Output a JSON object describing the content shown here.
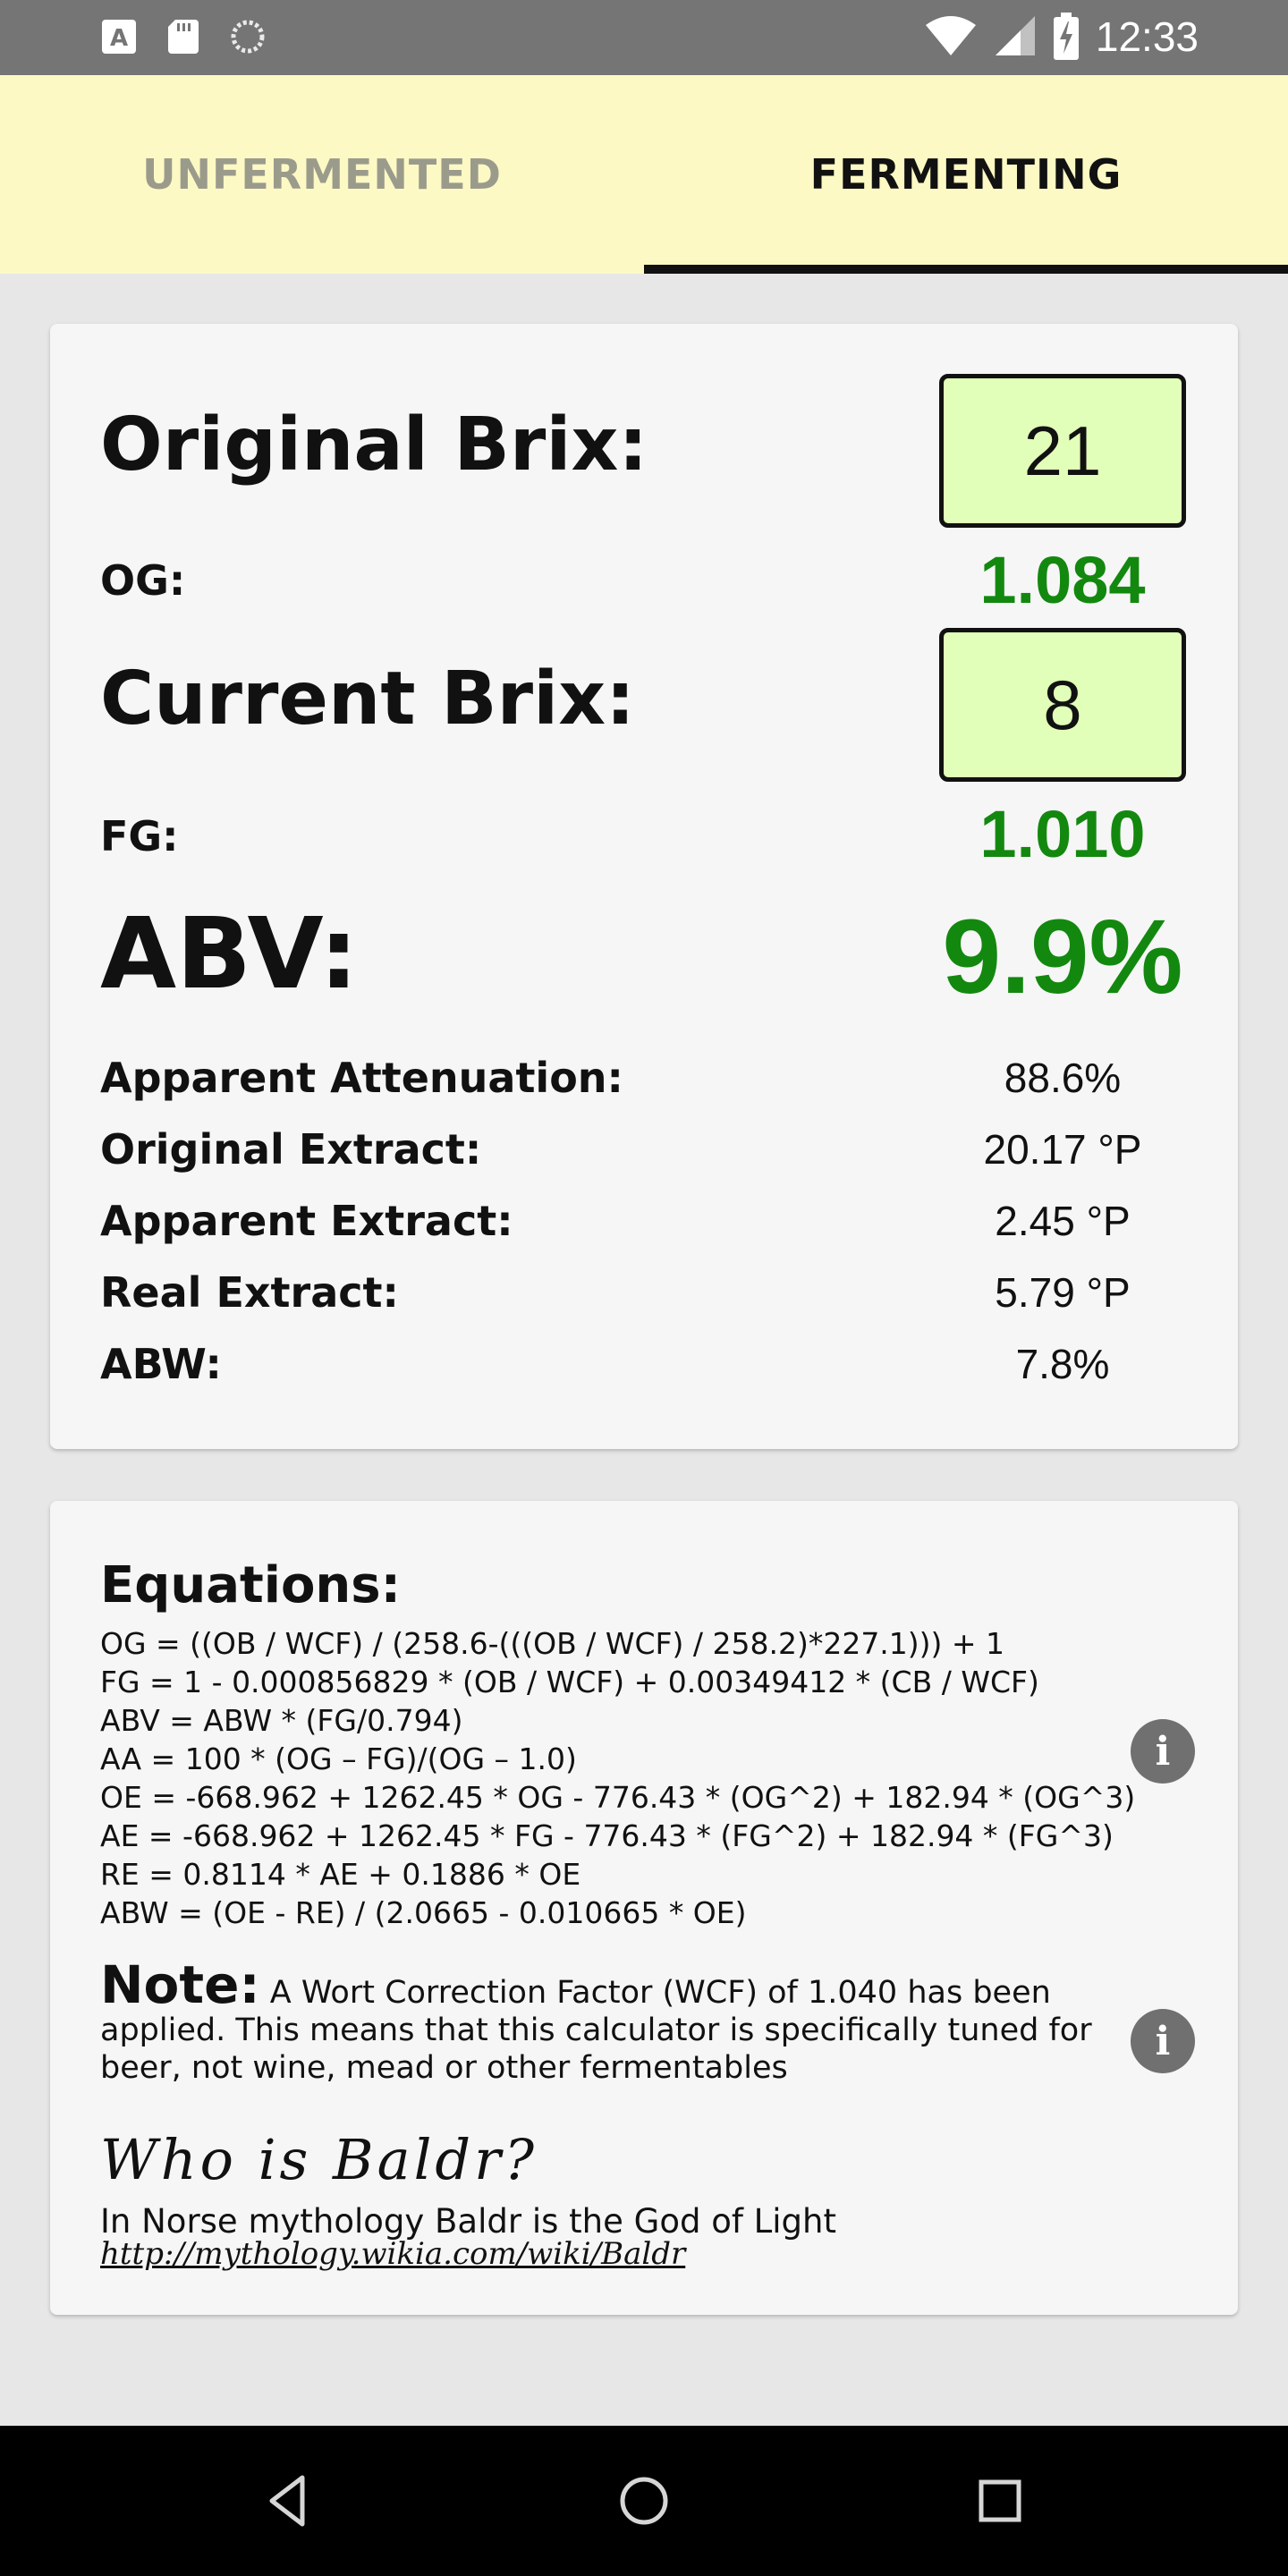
{
  "status_bar": {
    "time": "12:33",
    "left_icons": [
      "a-icon",
      "sd-card-icon",
      "sync-icon"
    ],
    "right_icons": [
      "wifi-icon",
      "signal-icon",
      "battery-charging-icon"
    ]
  },
  "tabs": [
    {
      "label": "UNFERMENTED",
      "active": false
    },
    {
      "label": "FERMENTING",
      "active": true
    }
  ],
  "calculator": {
    "original_brix_label": "Original Brix:",
    "original_brix_value": "21",
    "og_label": "OG:",
    "og_value": "1.084",
    "current_brix_label": "Current Brix:",
    "current_brix_value": "8",
    "fg_label": "FG:",
    "fg_value": "1.010",
    "abv_label": "ABV:",
    "abv_value": "9.9%",
    "rows": [
      {
        "label": "Apparent Attenuation:",
        "value": "88.6%"
      },
      {
        "label": "Original Extract:",
        "value": "20.17 °P"
      },
      {
        "label": "Apparent Extract:",
        "value": "2.45 °P"
      },
      {
        "label": "Real Extract:",
        "value": "5.79 °P"
      },
      {
        "label": "ABW:",
        "value": "7.8%"
      }
    ],
    "accent_color": "#13880f",
    "input_bg": "#e2ffb9"
  },
  "info": {
    "equations_title": "Equations:",
    "equations": [
      "OG = ((OB / WCF) / (258.6-(((OB / WCF) / 258.2)*227.1))) + 1",
      "FG = 1 - 0.000856829 * (OB / WCF) + 0.00349412 * (CB / WCF)",
      "ABV = ABW * (FG/0.794)",
      "AA = 100 * (OG – FG)/(OG – 1.0)",
      "OE = -668.962 + 1262.45 * OG - 776.43 * (OG^2) + 182.94 * (OG^3)",
      "AE = -668.962 + 1262.45 * FG - 776.43 * (FG^2) + 182.94 * (FG^3)",
      "RE = 0.8114 * AE + 0.1886 * OE",
      "ABW = (OE - RE) / (2.0665 - 0.010665 * OE)"
    ],
    "info_icon_glyph": "i",
    "note_label": "Note:",
    "note_text": "A Wort Correction Factor (WCF) of 1.040 has been applied. This means that this calculator is specifically tuned for beer, not wine, mead or other fermentables",
    "baldr_title": "Who is Baldr?",
    "baldr_text": "In Norse mythology Baldr is the God of Light",
    "baldr_link": "http://mythology.wikia.com/wiki/Baldr"
  },
  "nav_bar": {
    "buttons": [
      "back-icon",
      "home-icon",
      "recents-icon"
    ]
  },
  "colors": {
    "tab_bar_bg": "#fdf9c4",
    "status_bar_bg": "#757575",
    "page_bg": "#e7e7e7"
  }
}
